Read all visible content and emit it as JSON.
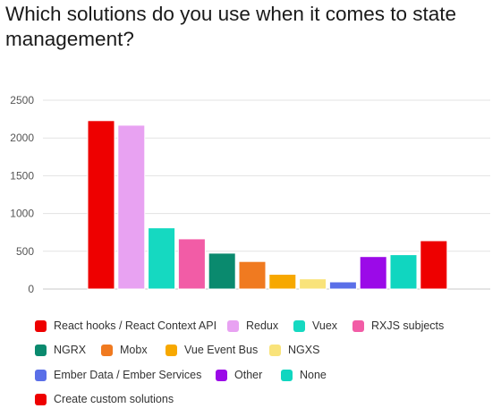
{
  "chart_data": {
    "type": "bar",
    "title": "Which solutions do you use when it comes to state management?",
    "xlabel": "",
    "ylabel": "",
    "ylim": [
      0,
      2500
    ],
    "yticks": [
      0,
      500,
      1000,
      1500,
      2000,
      2500
    ],
    "grid": true,
    "legend_position": "bottom",
    "categories": [
      "React hooks / React Context API",
      "Redux",
      "Vuex",
      "RXJS subjects",
      "NGRX",
      "Mobx",
      "Vue Event Bus",
      "NGXS",
      "Ember Data / Ember Services",
      "Other",
      "None",
      "Create custom solutions"
    ],
    "values": [
      2230,
      2170,
      810,
      665,
      475,
      365,
      195,
      135,
      95,
      430,
      455,
      640
    ],
    "colors": [
      "#ee0000",
      "#e8a2f2",
      "#15d9c1",
      "#f25ca6",
      "#0a8a6e",
      "#f07a20",
      "#f7a800",
      "#f9e37a",
      "#5a6fe8",
      "#9b0ae8",
      "#10d6c0",
      "#ee0000"
    ]
  }
}
